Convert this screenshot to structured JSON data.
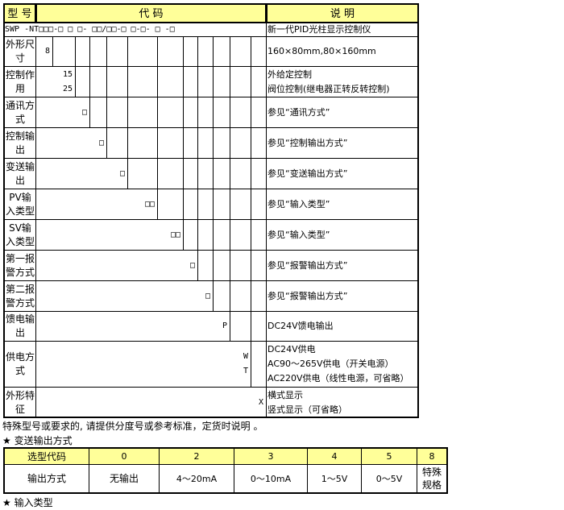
{
  "header": {
    "model": "型 号",
    "code": "代 码",
    "desc": "说 明"
  },
  "code_row": {
    "code": "SWP -NT□□□-□ □ □- □□/□□-□ □-□- □ -□",
    "desc": "新一代PID光柱显示控制仪"
  },
  "rows": [
    {
      "label": "外形尺寸",
      "values": [
        "8"
      ],
      "desc": [
        "160×80mm,80×160mm"
      ]
    },
    {
      "label": "控制作用",
      "values": [
        "15",
        "25"
      ],
      "desc": [
        "外给定控制",
        "阀位控制(继电器正转反转控制)"
      ]
    },
    {
      "label": "通讯方式",
      "values": [
        "□"
      ],
      "desc": [
        "参见“通讯方式”"
      ]
    },
    {
      "label": "控制输出",
      "values": [
        "□"
      ],
      "desc": [
        "参见“控制输出方式”"
      ]
    },
    {
      "label": "变送输出",
      "values": [
        "□"
      ],
      "desc": [
        "参见“变送输出方式”"
      ]
    },
    {
      "label": "PV输入类型",
      "values": [
        "□□"
      ],
      "desc": [
        "参见“输入类型”"
      ]
    },
    {
      "label": "SV输入类型",
      "values": [
        "□□"
      ],
      "desc": [
        "参见“输入类型”"
      ]
    },
    {
      "label": "第一报警方式",
      "values": [
        "□"
      ],
      "desc": [
        "参见“报警输出方式”"
      ]
    },
    {
      "label": "第二报警方式",
      "values": [
        "□"
      ],
      "desc": [
        "参见“报警输出方式”"
      ]
    },
    {
      "label": "馈电输出",
      "values": [
        "P"
      ],
      "desc": [
        "DC24V馈电输出"
      ]
    },
    {
      "label": "供电方式",
      "values": [
        "W",
        "T"
      ],
      "desc": [
        "DC24V供电",
        "AC90～265V供电（开关电源）",
        "AC220V供电（线性电源，可省略）"
      ]
    },
    {
      "label": "外形特征",
      "values": [
        "X"
      ],
      "desc": [
        "横式显示",
        "竖式显示（可省略）"
      ]
    }
  ],
  "note": "特殊型号或要求的, 请提供分度号或参考标准，定货时说明 。",
  "section1": "★ 变送输出方式",
  "output_table": {
    "header": [
      "选型代码",
      "0",
      "2",
      "3",
      "4",
      "5",
      "8"
    ],
    "row": [
      "输出方式",
      "无输出",
      "4～20mA",
      "0～10mA",
      "1～5V",
      "0～5V",
      "特殊规格"
    ]
  },
  "section2": "★ 输入类型",
  "colors": {
    "header_bg": "#ffff99"
  }
}
